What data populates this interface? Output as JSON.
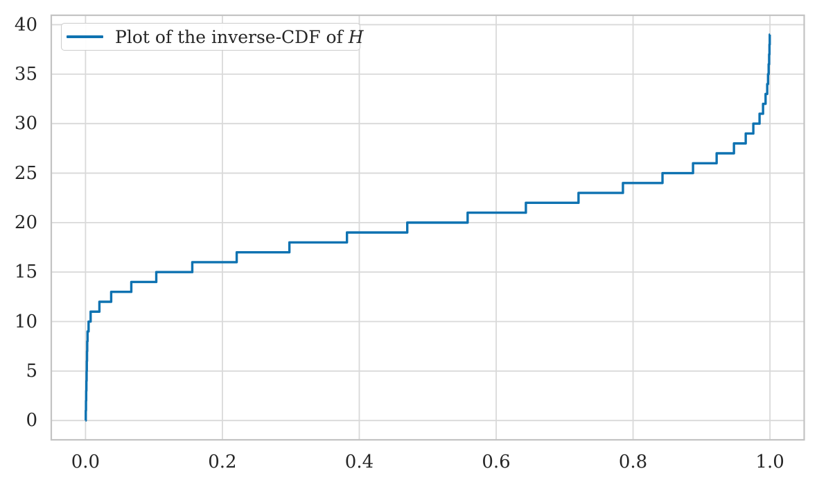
{
  "chart_data": {
    "type": "line",
    "style": "step-function (empirical inverse CDF / quantile plot)",
    "title": "",
    "xlabel": "",
    "ylabel": "",
    "grid": true,
    "legend": {
      "position": "upper-left",
      "prefix": "Plot of the inverse-CDF of ",
      "math_symbol": "H"
    },
    "xlim": [
      -0.05,
      1.05
    ],
    "ylim": [
      -1.95,
      40.95
    ],
    "x_ticks": [
      0.0,
      0.2,
      0.4,
      0.6,
      0.8,
      1.0
    ],
    "x_tick_labels": [
      "0.0",
      "0.2",
      "0.4",
      "0.6",
      "0.8",
      "1.0"
    ],
    "y_ticks": [
      0,
      5,
      10,
      15,
      20,
      25,
      30,
      35,
      40
    ],
    "y_tick_labels": [
      "0",
      "5",
      "10",
      "15",
      "20",
      "25",
      "30",
      "35",
      "40"
    ],
    "line_color": "#0e72b1",
    "series": [
      {
        "name": "Plot of the inverse-CDF of H",
        "note": "Quantile function: output value k holds for probabilities p in (cdf[k-1], cdf[k]]; curve rises from (0,0) to (1.0,39)",
        "values": [
          0,
          1,
          2,
          3,
          4,
          5,
          6,
          7,
          8,
          9,
          10,
          11,
          12,
          13,
          14,
          15,
          16,
          17,
          18,
          19,
          20,
          21,
          22,
          23,
          24,
          25,
          26,
          27,
          28,
          29,
          30,
          31,
          32,
          33,
          34,
          35,
          36,
          37,
          38,
          39
        ],
        "cdf": [
          0.0004,
          0.0007,
          0.001,
          0.0013,
          0.0016,
          0.0019,
          0.0022,
          0.0025,
          0.003,
          0.0045,
          0.0075,
          0.0203,
          0.0375,
          0.0669,
          0.1034,
          0.156,
          0.2209,
          0.2979,
          0.382,
          0.4701,
          0.5583,
          0.6434,
          0.7203,
          0.7852,
          0.843,
          0.8876,
          0.9221,
          0.9474,
          0.9646,
          0.9757,
          0.9848,
          0.9899,
          0.9936,
          0.996,
          0.9972,
          0.9981,
          0.9988,
          0.9993,
          0.9997,
          1.0
        ]
      }
    ]
  },
  "colors": {
    "background": "#ffffff",
    "grid": "#d9d9d9",
    "spine": "#c3c3c3",
    "text": "#262626",
    "legend_border": "#cccccc"
  }
}
